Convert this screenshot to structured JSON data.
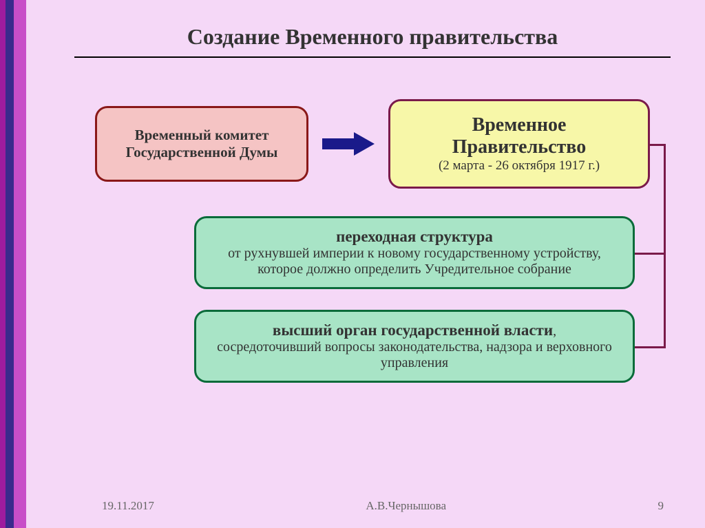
{
  "slide": {
    "background_color": "#f5d8f7",
    "side_stripes": [
      {
        "width": 8,
        "color": "#9e1c9e"
      },
      {
        "width": 12,
        "color": "#3a2a8c"
      },
      {
        "width": 18,
        "color": "#c84ec8"
      }
    ],
    "title": {
      "text": "Создание Временного правительства",
      "fontsize": 32,
      "color": "#333333"
    },
    "hr_color": "#000000"
  },
  "boxes": {
    "committee": {
      "lines": [
        "Временный комитет",
        "Государственной Думы"
      ],
      "fontsize": 21,
      "font_weight": "bold",
      "color": "#333333",
      "bg": "#f5c4c4",
      "border_color": "#8a1818",
      "border_width": 3
    },
    "government": {
      "title": "Временное",
      "title2": "Правительство",
      "subtitle": "(2 марта - 26 октября 1917 г.)",
      "title_fontsize": 28,
      "title_color": "#333333",
      "subtitle_fontsize": 19,
      "bg": "#f7f7a8",
      "border_color": "#7a1a4a",
      "border_width": 3
    },
    "structure": {
      "title": "переходная структура",
      "body": "от рухнувшей империи к новому государственному устройству, которое должно определить Учредительное собрание",
      "title_fontsize": 23,
      "body_fontsize": 20,
      "color": "#333333",
      "bg": "#a8e4c6",
      "border_color": "#0a6b3a",
      "border_width": 3
    },
    "authority": {
      "title": "высший орган государственной власти",
      "body": "сосредоточивший вопросы законодательства, надзора и верховного управления",
      "title_fontsize": 23,
      "body_fontsize": 20,
      "title_comma": ",",
      "color": "#333333",
      "bg": "#a8e4c6",
      "border_color": "#0a6b3a",
      "border_width": 3
    }
  },
  "arrow": {
    "color": "#1a1a8a",
    "shaft_width": 46,
    "shaft_height": 16,
    "head_size": 26
  },
  "connectors": {
    "color": "#7a1a4a"
  },
  "footer": {
    "date": "19.11.2017",
    "author": "А.В.Чернышова",
    "page": "9",
    "fontsize": 17,
    "color": "#666666"
  }
}
